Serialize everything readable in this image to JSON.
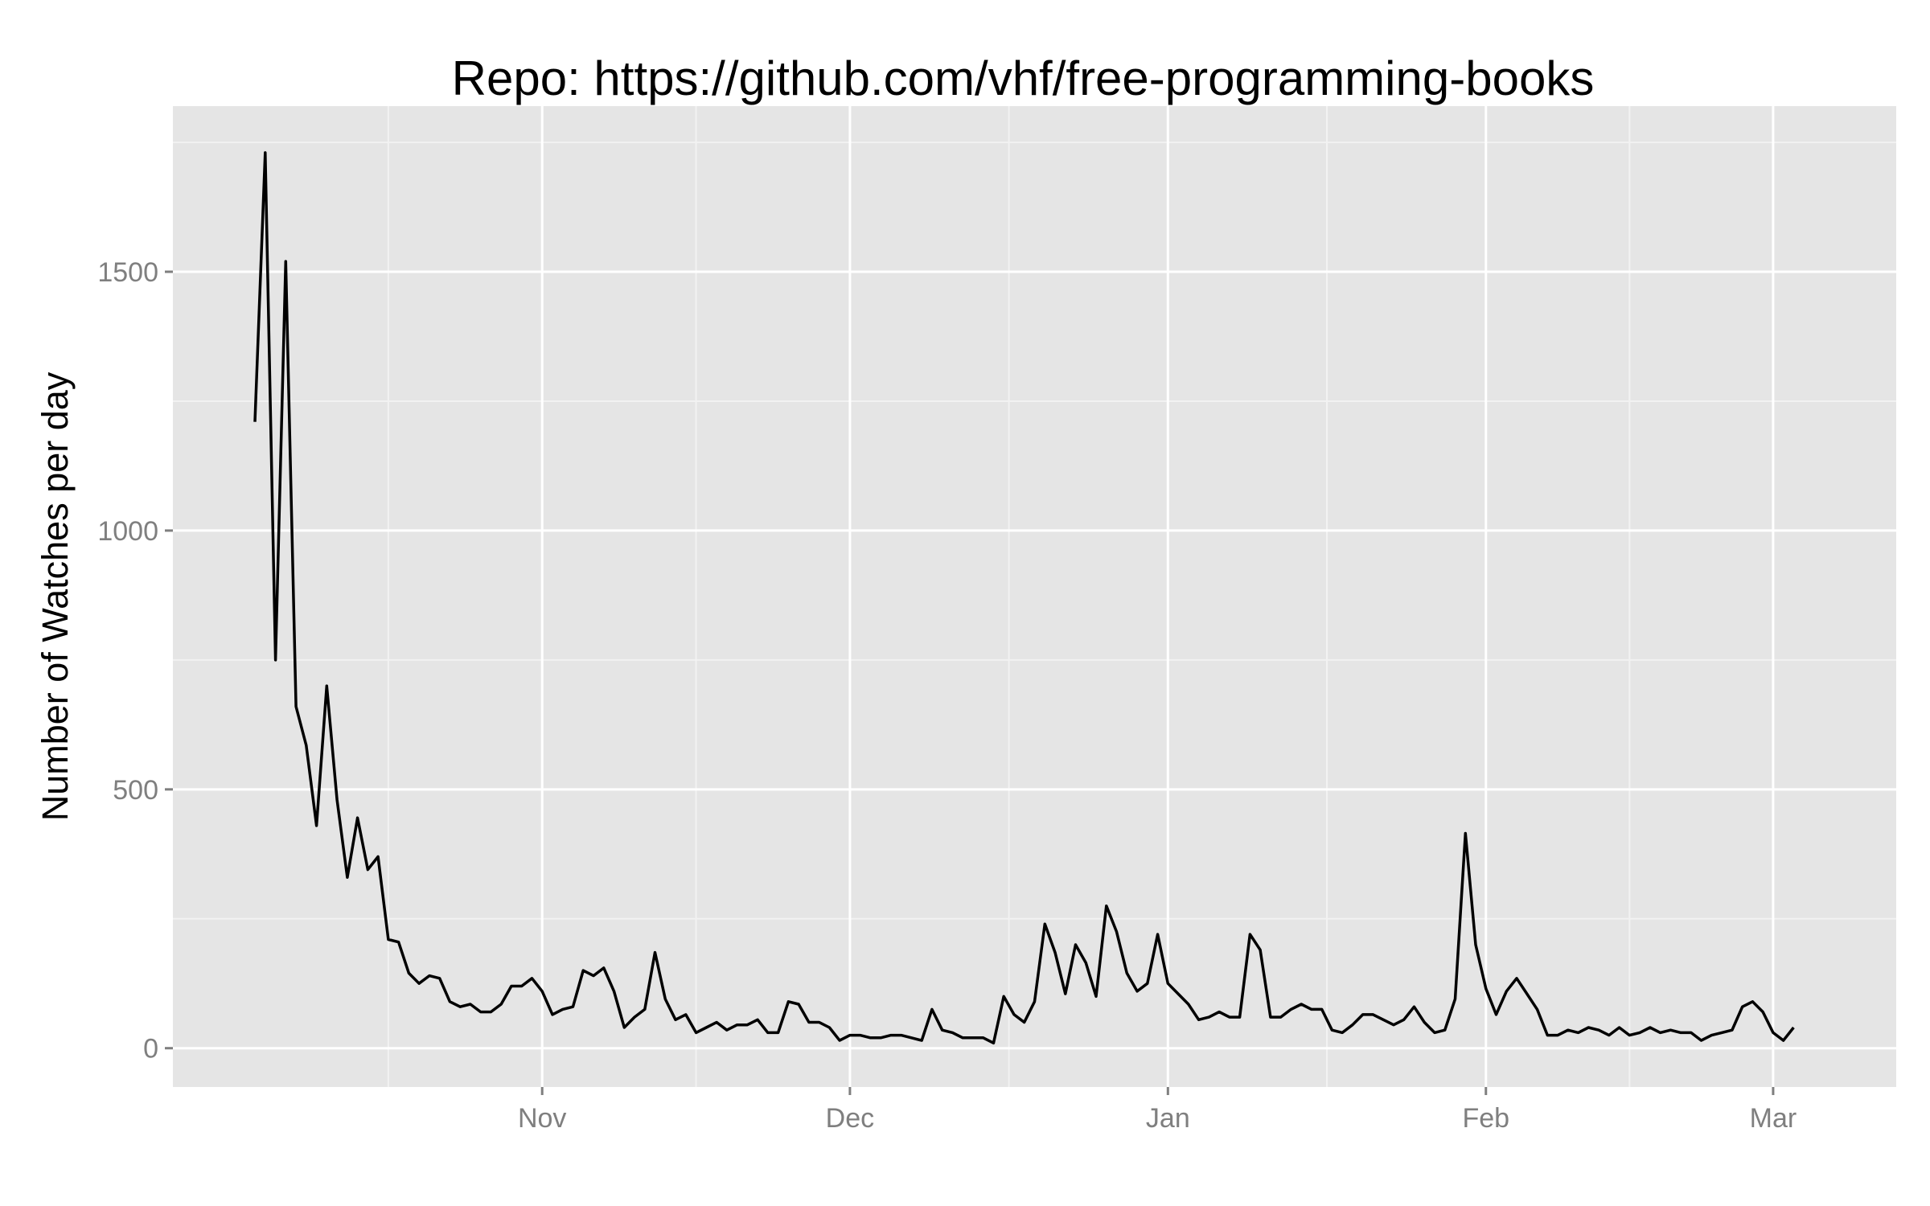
{
  "chart_data": {
    "type": "line",
    "title": "Repo: https://github.com/vhf/free-programming-books",
    "xlabel": "",
    "ylabel": "Number of Watches per day",
    "x_start": "2013-10-04",
    "x_step": "1 day",
    "xlim": [
      "2013-09-26",
      "2014-03-13"
    ],
    "ylim": [
      -75,
      1820
    ],
    "x_ticks": [
      {
        "label": "Nov",
        "date": "2013-11-01"
      },
      {
        "label": "Dec",
        "date": "2013-12-01"
      },
      {
        "label": "Jan",
        "date": "2014-01-01"
      },
      {
        "label": "Feb",
        "date": "2014-02-01"
      },
      {
        "label": "Mar",
        "date": "2014-03-01"
      }
    ],
    "y_ticks": [
      0,
      500,
      1000,
      1500
    ],
    "grid": true,
    "series": [
      {
        "name": "",
        "color": "#000000",
        "values": [
          1210,
          1730,
          750,
          1520,
          660,
          585,
          430,
          700,
          480,
          330,
          445,
          345,
          370,
          210,
          205,
          145,
          125,
          140,
          135,
          90,
          80,
          85,
          70,
          70,
          85,
          120,
          120,
          135,
          110,
          65,
          75,
          80,
          150,
          140,
          155,
          110,
          40,
          60,
          75,
          185,
          95,
          55,
          65,
          30,
          40,
          50,
          35,
          45,
          45,
          55,
          30,
          30,
          90,
          85,
          50,
          50,
          40,
          15,
          25,
          25,
          20,
          20,
          25,
          25,
          20,
          15,
          75,
          35,
          30,
          20,
          20,
          20,
          10,
          100,
          65,
          50,
          90,
          240,
          185,
          105,
          200,
          165,
          100,
          275,
          225,
          145,
          110,
          125,
          220,
          125,
          105,
          85,
          55,
          60,
          70,
          60,
          60,
          220,
          190,
          60,
          60,
          75,
          85,
          75,
          75,
          35,
          30,
          45,
          65,
          65,
          55,
          45,
          55,
          80,
          50,
          30,
          35,
          95,
          415,
          200,
          115,
          65,
          110,
          135,
          105,
          75,
          25,
          25,
          35,
          30,
          40,
          35,
          25,
          40,
          25,
          30,
          40,
          30,
          35,
          30,
          30,
          15,
          25,
          30,
          35,
          80,
          90,
          70,
          30,
          15,
          40
        ]
      }
    ]
  },
  "colors": {
    "panel_background": "#e5e5e5",
    "grid_major": "#ffffff",
    "grid_minor": "#f2f2f2",
    "tick_text": "#7f7f7f",
    "line": "#000000"
  }
}
